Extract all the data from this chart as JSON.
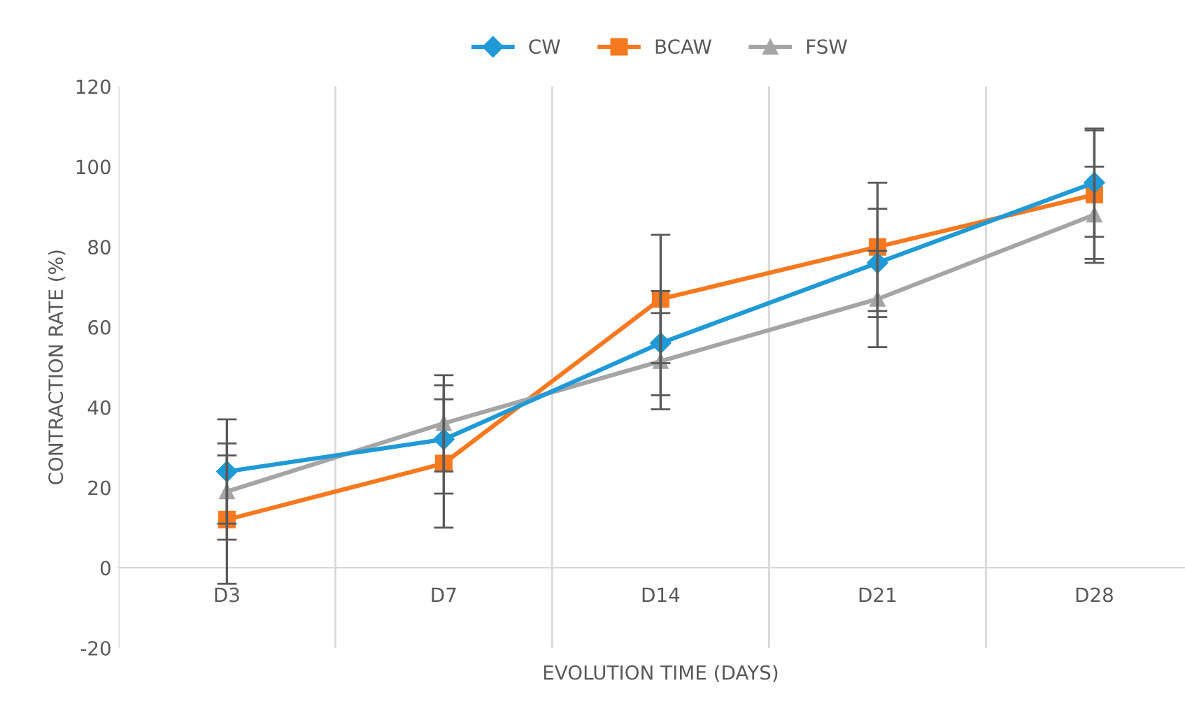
{
  "chart_data": {
    "type": "line",
    "xlabel": "EVOLUTION TIME (DAYS)",
    "ylabel": "CONTRACTION RATE (%)",
    "categories": [
      "D3",
      "D7",
      "D14",
      "D21",
      "D28"
    ],
    "series": [
      {
        "name": "CW",
        "color": "#1f9ad6",
        "marker": "diamond",
        "values": [
          24,
          32,
          56,
          76,
          96
        ],
        "errors": [
          13,
          13.5,
          13,
          13.5,
          13.5
        ]
      },
      {
        "name": "BCAW",
        "color": "#f7791f",
        "marker": "square",
        "values": [
          12,
          26,
          67,
          80,
          93
        ],
        "errors": [
          16,
          16,
          16,
          16,
          16
        ]
      },
      {
        "name": "FSW",
        "color": "#a5a5a5",
        "marker": "triangle",
        "values": [
          19,
          36,
          51.5,
          67,
          88
        ],
        "errors": [
          12,
          12,
          12,
          12,
          12
        ]
      }
    ],
    "ylim": [
      -20,
      120
    ],
    "yticks": [
      -20,
      0,
      20,
      40,
      60,
      80,
      100,
      120
    ],
    "grid": "x",
    "legend": "top",
    "line_style": "solid"
  }
}
